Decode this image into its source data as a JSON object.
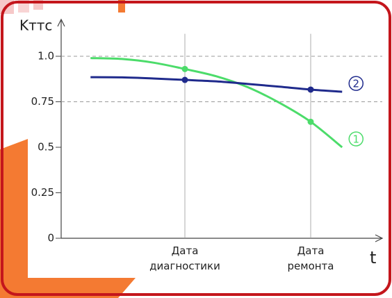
{
  "chart_data": {
    "type": "line",
    "y_label": "Kттс",
    "x_label": "t",
    "categories": [
      null,
      null,
      null,
      null,
      "Дата диагностики",
      null,
      null,
      null,
      "Дата ремонта",
      null
    ],
    "series": [
      {
        "name": "1",
        "color": "#4cdc6a",
        "values": [
          null,
          0.99,
          0.985,
          0.965,
          0.93,
          0.89,
          0.83,
          0.745,
          0.64,
          0.5
        ]
      },
      {
        "name": "2",
        "color": "#1f2a8c",
        "values": [
          null,
          0.885,
          0.884,
          0.878,
          0.87,
          0.862,
          0.848,
          0.833,
          0.817,
          0.805
        ]
      }
    ],
    "ylim": [
      0,
      1.2
    ],
    "yticks": [
      0,
      0.25,
      0.5,
      0.75,
      {
        "value": 1,
        "label": "1.0"
      }
    ],
    "grid_values": [
      1,
      0.75
    ]
  }
}
